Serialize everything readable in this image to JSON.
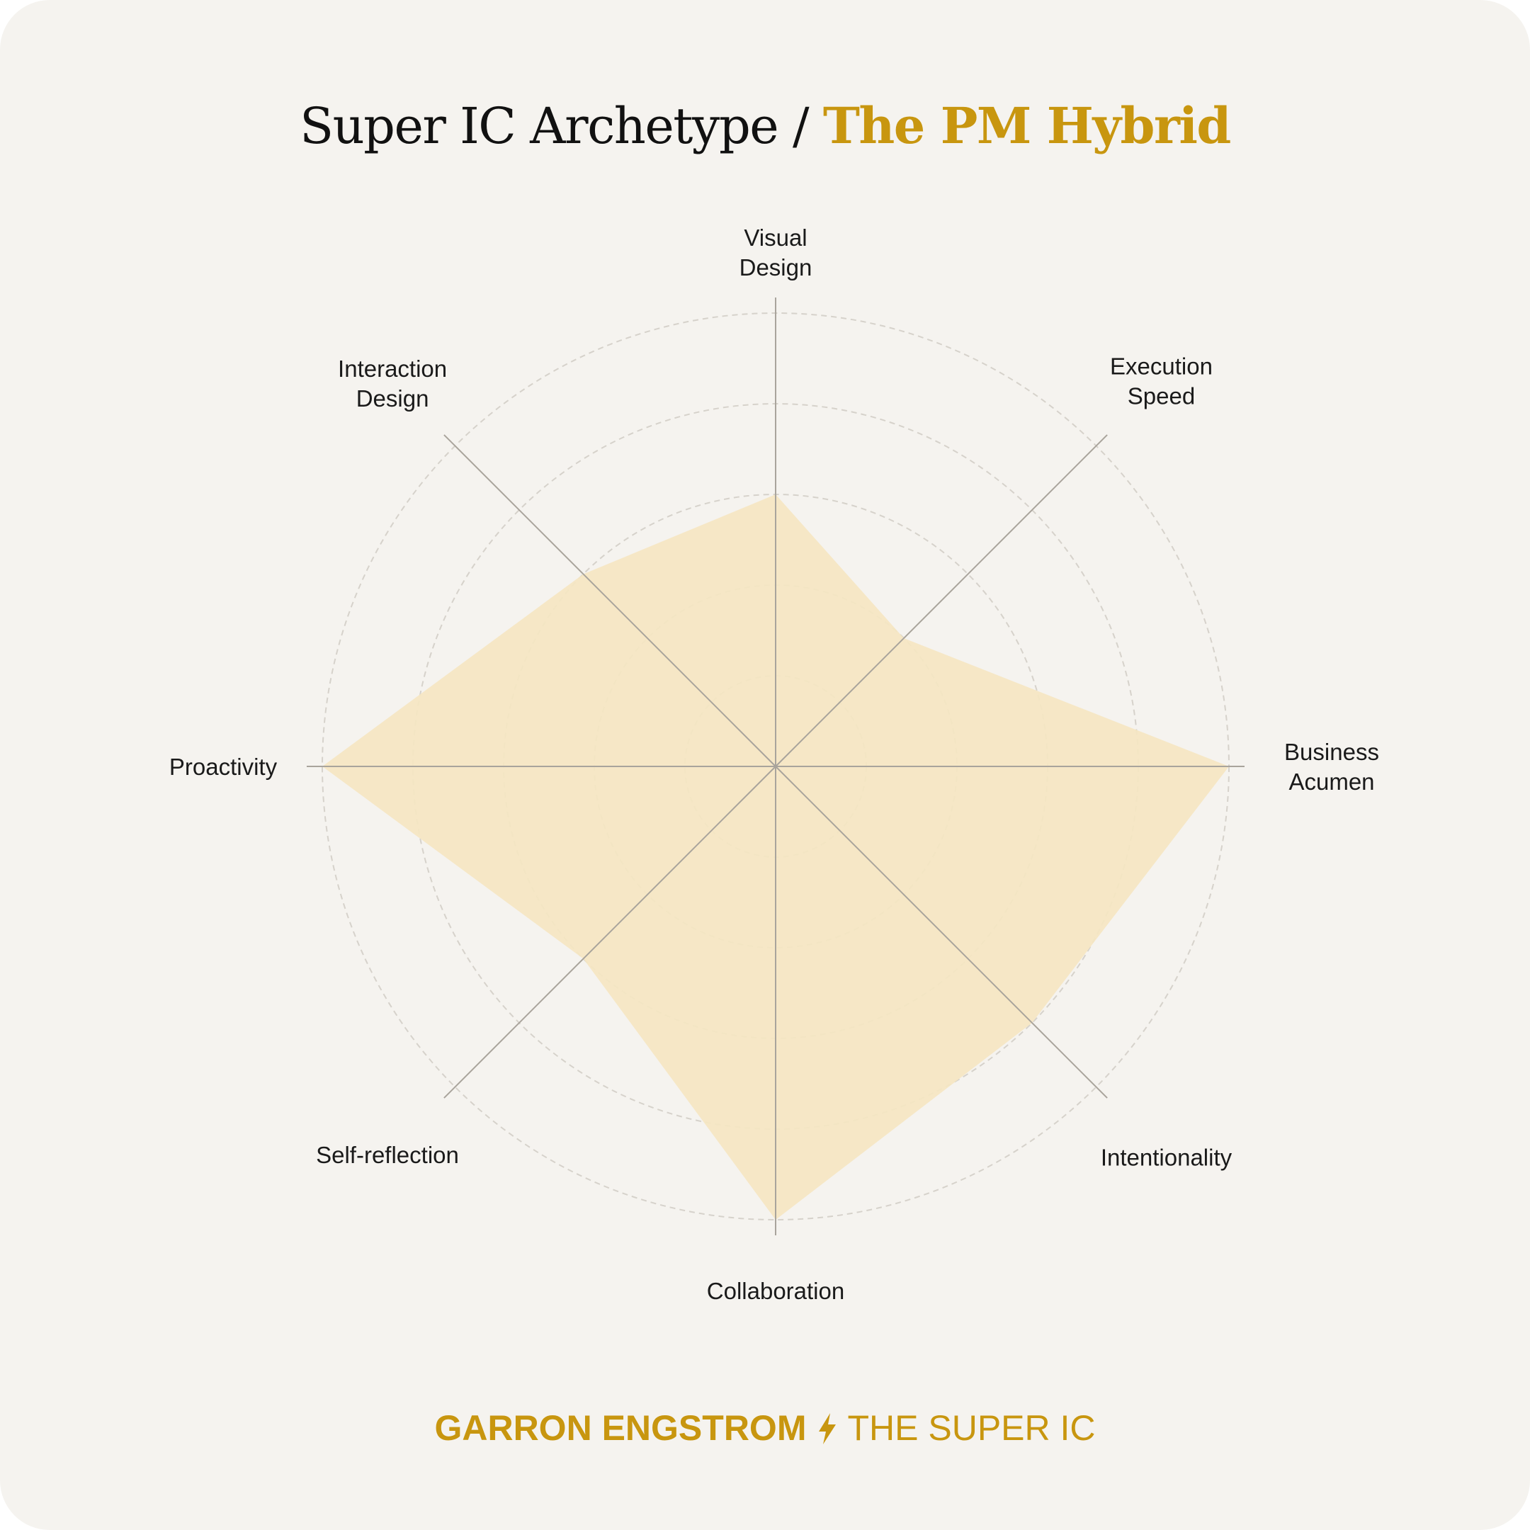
{
  "title": {
    "prefix": "Super IC Archetype /",
    "highlight": "The PM Hybrid"
  },
  "chart_data": {
    "type": "radar",
    "axes": [
      "Visual\nDesign",
      "Execution\nSpeed",
      "Business\nAcumen",
      "Intentionality",
      "Collaboration",
      "Self-reflection",
      "Proactivity",
      "Interaction\nDesign"
    ],
    "values": [
      3,
      2,
      5,
      4,
      5,
      3,
      5,
      3
    ],
    "rmax": 5,
    "rings": [
      1,
      2,
      3,
      4,
      5
    ],
    "grid": true,
    "fill_color": "#f5e6c2"
  },
  "footer": {
    "author": "GARRON ENGSTROM",
    "publication": "THE SUPER IC",
    "separator_icon": "lightning-bolt-icon"
  },
  "colors": {
    "background": "#f5f3ef",
    "accent": "#c8960f",
    "text": "#111111",
    "axis": "#a9a49c",
    "ring": "#d6d2cb"
  }
}
